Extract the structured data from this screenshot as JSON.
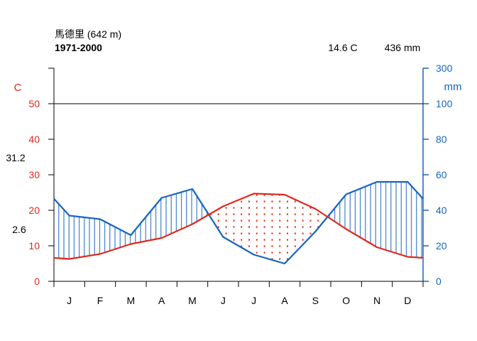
{
  "header": {
    "station": "馬德里 (642 m)",
    "period": "1971-2000",
    "mean_temp": "14.6 C",
    "total_precip": "436 mm"
  },
  "side_labels": {
    "abs_max": "31.2",
    "abs_min": "2.6"
  },
  "colors": {
    "temperature": "#e0281c",
    "precipitation": "#1565c0",
    "axis": "#000000"
  },
  "chart_data": {
    "type": "line",
    "title": "",
    "categories": [
      "J",
      "F",
      "M",
      "A",
      "M",
      "J",
      "J",
      "A",
      "S",
      "O",
      "N",
      "D"
    ],
    "temp_axis": {
      "label": "C",
      "ylim": [
        0,
        50
      ],
      "ticks": [
        0,
        10,
        20,
        30,
        40,
        50
      ],
      "tick_labels": [
        "0",
        "10",
        "20",
        "30",
        "40",
        "50"
      ]
    },
    "precip_axis": {
      "label": "mm",
      "ylim": [
        0,
        300
      ],
      "ticks": [
        0,
        20,
        40,
        60,
        80,
        100,
        300
      ],
      "tick_labels": [
        "0",
        "20",
        "40",
        "60",
        "80",
        "100",
        "300"
      ],
      "note": "scale 2 mm per 1 C up to 100 mm, compressed above"
    },
    "series": [
      {
        "name": "C",
        "axis": "temp",
        "values": [
          6.3,
          7.7,
          10.5,
          12.2,
          16.1,
          21.1,
          24.7,
          24.4,
          20.4,
          14.7,
          9.6,
          6.9
        ]
      },
      {
        "name": "mm",
        "axis": "precip",
        "values": [
          37,
          35,
          26,
          47,
          52,
          25,
          15,
          10,
          28,
          49,
          56,
          56
        ]
      }
    ],
    "grid": false,
    "reference_line": 100
  }
}
